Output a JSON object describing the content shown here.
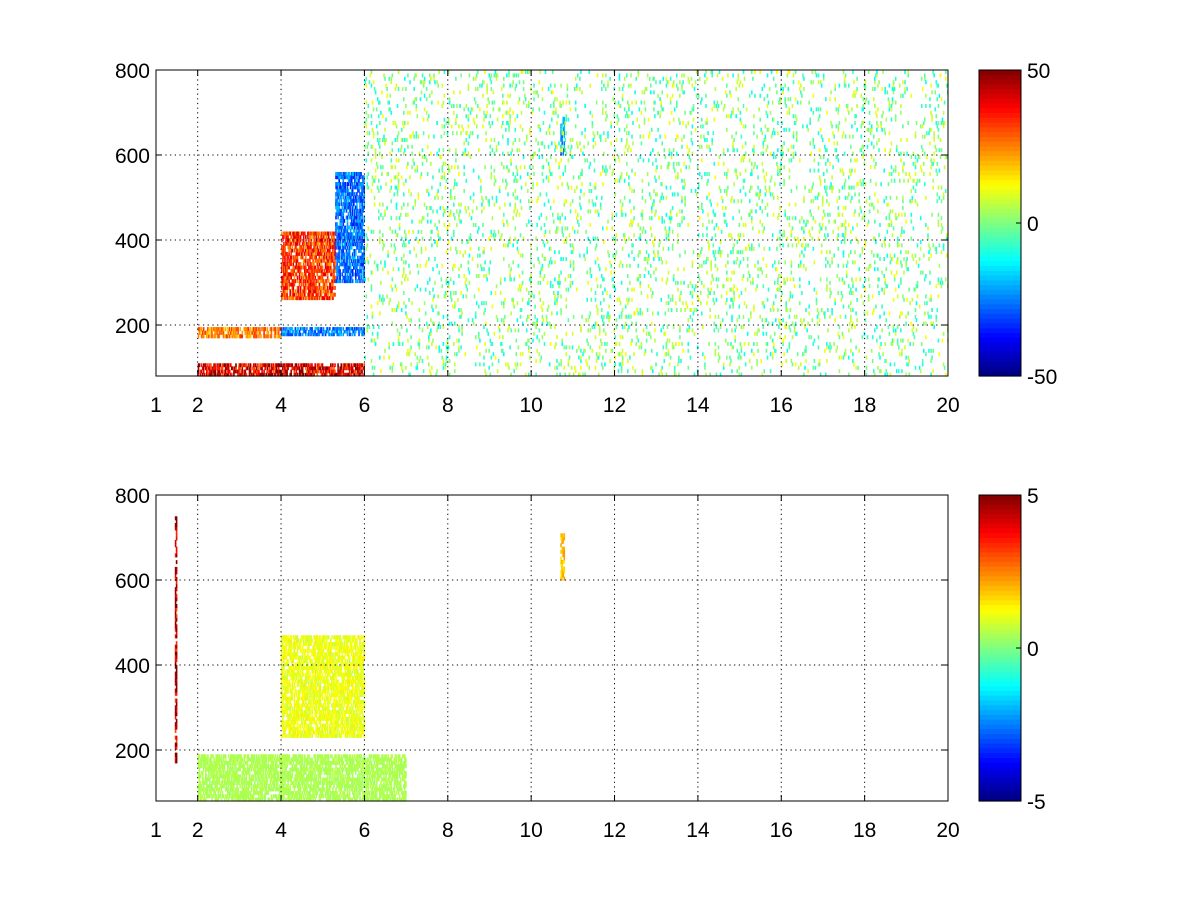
{
  "chart_data": [
    {
      "type": "heatmap",
      "title": "",
      "xlabel": "",
      "ylabel": "",
      "xlim": [
        1,
        20
      ],
      "ylim": [
        80,
        800
      ],
      "x_ticks": [
        1,
        2,
        4,
        6,
        8,
        10,
        12,
        14,
        16,
        18,
        20
      ],
      "x_tick_labels": [
        "1",
        "2",
        "4",
        "6",
        "8",
        "10",
        "12",
        "14",
        "16",
        "18",
        "20"
      ],
      "y_ticks": [
        200,
        400,
        600,
        800
      ],
      "y_tick_labels": [
        "200",
        "400",
        "600",
        "800"
      ],
      "grid": true,
      "colormap": "jet",
      "colorbar": {
        "limits": [
          -50,
          50
        ],
        "ticks": [
          50,
          0,
          -50
        ],
        "tick_labels": [
          "50",
          "0",
          "-50"
        ],
        "placement": "right"
      },
      "missing_values_color": "#ffffff",
      "features": [
        {
          "description": "strong positive band at bottom",
          "x": [
            2,
            6
          ],
          "y": [
            80,
            110
          ],
          "value": 45
        },
        {
          "description": "positive horizontal band",
          "x": [
            2,
            4
          ],
          "y": [
            170,
            195
          ],
          "value": 28
        },
        {
          "description": "negative horizontal band",
          "x": [
            4,
            6
          ],
          "y": [
            175,
            195
          ],
          "value": -28
        },
        {
          "description": "positive curved ridge",
          "x": [
            4,
            5.3
          ],
          "y": [
            260,
            420
          ],
          "value": 35
        },
        {
          "description": "negative curved ridge",
          "x": [
            5.3,
            6
          ],
          "y": [
            300,
            560
          ],
          "value": -30
        },
        {
          "description": "negative patch",
          "x": [
            10.7,
            10.8
          ],
          "y": [
            600,
            690
          ],
          "value": -25
        },
        {
          "description": "sparse near-zero scatter",
          "x": [
            6,
            20
          ],
          "y": [
            80,
            800
          ],
          "value": 0
        }
      ]
    },
    {
      "type": "heatmap",
      "title": "",
      "xlabel": "",
      "ylabel": "",
      "xlim": [
        1,
        20
      ],
      "ylim": [
        80,
        800
      ],
      "x_ticks": [
        1,
        2,
        4,
        6,
        8,
        10,
        12,
        14,
        16,
        18,
        20
      ],
      "x_tick_labels": [
        "1",
        "2",
        "4",
        "6",
        "8",
        "10",
        "12",
        "14",
        "16",
        "18",
        "20"
      ],
      "y_ticks": [
        200,
        400,
        600,
        800
      ],
      "y_tick_labels": [
        "200",
        "400",
        "600",
        "800"
      ],
      "grid": true,
      "colormap": "jet",
      "colorbar": {
        "limits": [
          -5,
          5
        ],
        "ticks": [
          5,
          0,
          -5
        ],
        "tick_labels": [
          "5",
          "0",
          "-5"
        ],
        "placement": "right"
      },
      "missing_values_color": "#ffffff",
      "features": [
        {
          "description": "near-zero band at bottom",
          "x": [
            2,
            7
          ],
          "y": [
            80,
            190
          ],
          "value": 0.5
        },
        {
          "description": "slightly positive ridge",
          "x": [
            4,
            6
          ],
          "y": [
            230,
            470
          ],
          "value": 1.2
        },
        {
          "description": "positive vertical line",
          "x": [
            1.45,
            1.5
          ],
          "y": [
            170,
            750
          ],
          "value": 5
        },
        {
          "description": "mixed vertical patch",
          "x": [
            10.7,
            10.8
          ],
          "y": [
            600,
            710
          ],
          "value": 2
        }
      ]
    }
  ]
}
